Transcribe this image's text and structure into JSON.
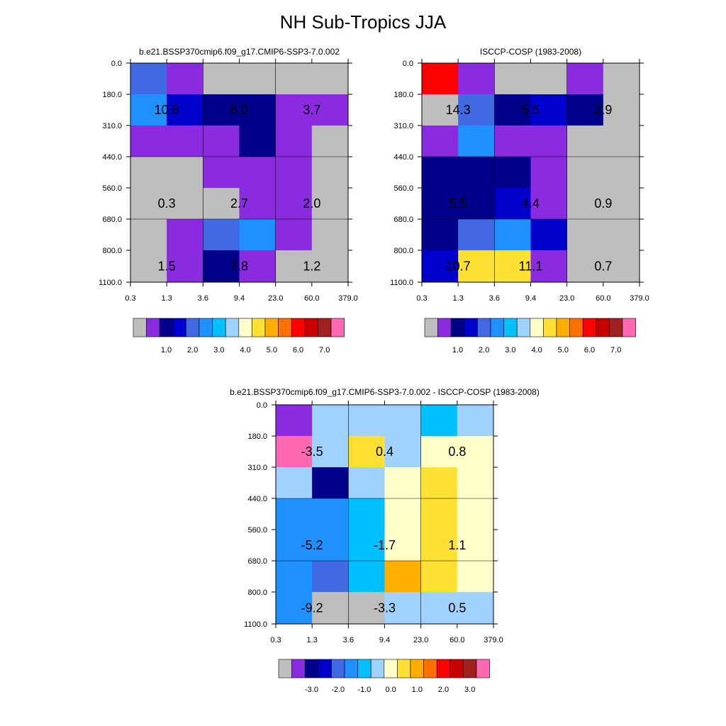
{
  "title": "NH Sub-Tropics JJA",
  "chart_data": [
    {
      "type": "heatmap",
      "title": "b.e21.BSSP370cmip6.f09_g17.CMIP6-SSP3-7.0.002",
      "x_ticks": [
        "0.3",
        "1.3",
        "3.6",
        "9.4",
        "23.0",
        "60.0",
        "379.0"
      ],
      "y_ticks": [
        "0.0",
        "180.0",
        "310.0",
        "440.0",
        "560.0",
        "680.0",
        "800.0",
        "1100.0"
      ],
      "cells": [
        [
          4,
          1,
          0,
          0,
          0,
          0
        ],
        [
          5,
          3,
          2,
          2,
          1,
          1
        ],
        [
          1,
          1,
          1,
          2,
          1,
          0
        ],
        [
          0,
          0,
          1,
          1,
          1,
          0
        ],
        [
          0,
          0,
          0,
          1,
          1,
          0
        ],
        [
          0,
          1,
          4,
          5,
          1,
          0
        ],
        [
          0,
          1,
          2,
          1,
          0,
          0
        ]
      ],
      "annotations": [
        {
          "row": 1,
          "col": 0,
          "text": "10.8"
        },
        {
          "row": 1,
          "col": 1,
          "text": "6.0"
        },
        {
          "row": 1,
          "col": 2,
          "text": "3.7"
        },
        {
          "row": 4,
          "col": 0,
          "text": "0.3"
        },
        {
          "row": 4,
          "col": 1,
          "text": "2.7"
        },
        {
          "row": 4,
          "col": 2,
          "text": "2.0"
        },
        {
          "row": 6,
          "col": 0,
          "text": "1.5"
        },
        {
          "row": 6,
          "col": 1,
          "text": "7.8"
        },
        {
          "row": 6,
          "col": 2,
          "text": "1.2"
        }
      ],
      "colorbar_labels": [
        "1.0",
        "2.0",
        "3.0",
        "4.0",
        "5.0",
        "6.0",
        "7.0"
      ]
    },
    {
      "type": "heatmap",
      "title": "ISCCP-COSP (1983-2008)",
      "x_ticks": [
        "0.3",
        "1.3",
        "3.6",
        "9.4",
        "23.0",
        "60.0",
        "379.0"
      ],
      "y_ticks": [
        "0.0",
        "180.0",
        "310.0",
        "440.0",
        "560.0",
        "680.0",
        "800.0",
        "1100.0"
      ],
      "cells": [
        [
          12,
          1,
          0,
          0,
          1,
          0
        ],
        [
          0,
          4,
          2,
          3,
          2,
          0
        ],
        [
          1,
          5,
          1,
          1,
          0,
          0
        ],
        [
          2,
          2,
          2,
          1,
          0,
          0
        ],
        [
          2,
          2,
          3,
          1,
          0,
          0
        ],
        [
          2,
          4,
          5,
          3,
          0,
          0
        ],
        [
          3,
          9,
          9,
          1,
          0,
          0
        ]
      ],
      "annotations": [
        {
          "row": 1,
          "col": 0,
          "text": "14.3"
        },
        {
          "row": 1,
          "col": 1,
          "text": "5.5"
        },
        {
          "row": 1,
          "col": 2,
          "text": "2.9"
        },
        {
          "row": 4,
          "col": 0,
          "text": "5.5"
        },
        {
          "row": 4,
          "col": 1,
          "text": "4.4"
        },
        {
          "row": 4,
          "col": 2,
          "text": "0.9"
        },
        {
          "row": 6,
          "col": 0,
          "text": "10.7"
        },
        {
          "row": 6,
          "col": 1,
          "text": "11.1"
        },
        {
          "row": 6,
          "col": 2,
          "text": "0.7"
        }
      ],
      "colorbar_labels": [
        "1.0",
        "2.0",
        "3.0",
        "4.0",
        "5.0",
        "6.0",
        "7.0"
      ]
    },
    {
      "type": "heatmap",
      "title": "b.e21.BSSP370cmip6.f09_g17.CMIP6-SSP3-7.0.002 - ISCCP-COSP (1983-2008)",
      "x_ticks": [
        "0.3",
        "1.3",
        "3.6",
        "9.4",
        "23.0",
        "60.0",
        "379.0"
      ],
      "y_ticks": [
        "0.0",
        "180.0",
        "310.0",
        "440.0",
        "560.0",
        "680.0",
        "800.0",
        "1100.0"
      ],
      "cells": [
        [
          1,
          7,
          7,
          7,
          6,
          7
        ],
        [
          15,
          7,
          9,
          7,
          8,
          8
        ],
        [
          7,
          2,
          7,
          8,
          9,
          8
        ],
        [
          5,
          5,
          6,
          8,
          9,
          8
        ],
        [
          5,
          5,
          6,
          8,
          9,
          8
        ],
        [
          5,
          4,
          6,
          10,
          9,
          8
        ],
        [
          5,
          0,
          0,
          7,
          7,
          7
        ]
      ],
      "annotations": [
        {
          "row": 1,
          "col": 0,
          "text": "-3.5"
        },
        {
          "row": 1,
          "col": 1,
          "text": "0.4"
        },
        {
          "row": 1,
          "col": 2,
          "text": "0.8"
        },
        {
          "row": 4,
          "col": 0,
          "text": "-5.2"
        },
        {
          "row": 4,
          "col": 1,
          "text": "-1.7"
        },
        {
          "row": 4,
          "col": 2,
          "text": "1.1"
        },
        {
          "row": 6,
          "col": 0,
          "text": "-9.2"
        },
        {
          "row": 6,
          "col": 1,
          "text": "-3.3"
        },
        {
          "row": 6,
          "col": 2,
          "text": "0.5"
        }
      ],
      "colorbar_labels": [
        "-3.0",
        "-2.0",
        "-1.0",
        "0.0",
        "1.0",
        "2.0",
        "3.0"
      ]
    }
  ],
  "colors": {
    "palette": [
      "#bebebe",
      "#8a2be2",
      "#00008b",
      "#0000cd",
      "#4169e1",
      "#1e90ff",
      "#00bfff",
      "#a0d2ff",
      "#ffffc8",
      "#ffe135",
      "#ffad00",
      "#ff7000",
      "#ff0000",
      "#c80000",
      "#a02020",
      "#ff69b4"
    ],
    "grid": "#000000"
  }
}
